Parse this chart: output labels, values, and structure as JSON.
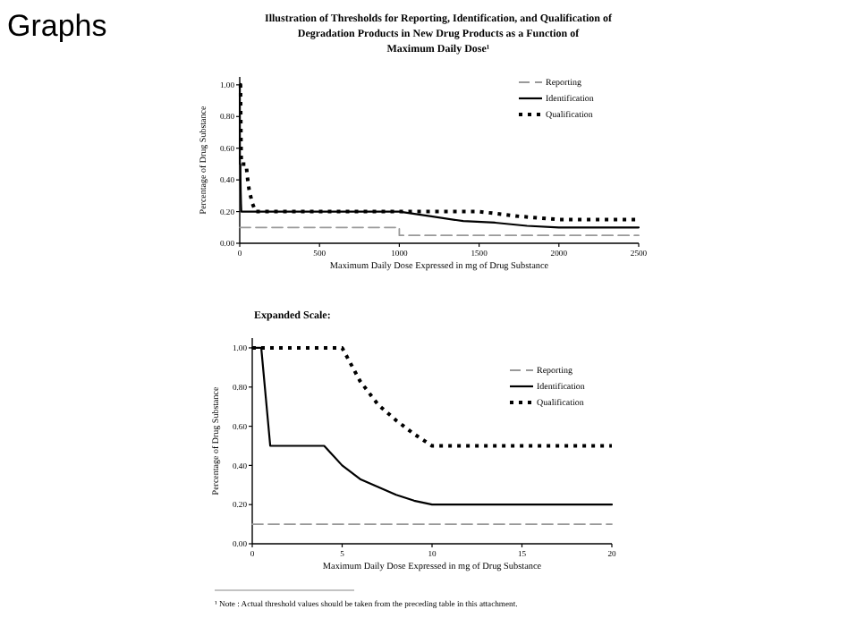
{
  "chart_data": [
    {
      "type": "line",
      "title": "Illustration of Thresholds for Reporting, Identification, and Qualification of\nDegradation Products in New Drug Products as a Function of\nMaximum Daily Dose¹",
      "xlabel": "Maximum Daily Dose Expressed in mg of Drug Substance",
      "ylabel": "Percentage of Drug Substance",
      "annotations": [
        "Graphs"
      ],
      "xlim": [
        0,
        2500
      ],
      "xticks": [
        0,
        500,
        1000,
        1500,
        2000,
        2500
      ],
      "ylim": [
        0,
        1.05
      ],
      "yticks": [
        {
          "value": 0,
          "label": "0.00"
        },
        {
          "value": 0.2,
          "label": "0.20"
        },
        {
          "value": 0.4,
          "label": "0.40"
        },
        {
          "value": 0.6,
          "label": "0.60"
        },
        {
          "value": 0.8,
          "label": "0.80"
        },
        {
          "value": 1,
          "label": "1.00"
        }
      ],
      "grid": false,
      "legend": "top right",
      "marker": "none",
      "series": [
        {
          "name": "Reporting",
          "color": "#999999",
          "line_style": "dashed",
          "x": [
            0,
            1000,
            1000,
            2500
          ],
          "values": [
            0.1,
            0.1,
            0.05,
            0.05
          ]
        },
        {
          "name": "Identification",
          "color": "#000000",
          "line_style": "solid",
          "x": [
            0,
            0.5,
            1,
            4,
            5,
            6,
            8,
            10,
            1000,
            1200,
            1400,
            1600,
            1800,
            2000,
            2500
          ],
          "values": [
            1,
            1,
            0.5,
            0.5,
            0.4,
            0.33,
            0.25,
            0.2,
            0.2,
            0.17,
            0.14,
            0.13,
            0.11,
            0.1,
            0.1
          ]
        },
        {
          "name": "Qualification",
          "color": "#000000",
          "line_style": "dotted",
          "x": [
            0,
            5,
            6,
            8,
            10,
            40,
            50,
            60,
            80,
            100,
            1500,
            1750,
            2000,
            2500
          ],
          "values": [
            1,
            1,
            0.83,
            0.63,
            0.5,
            0.5,
            0.4,
            0.33,
            0.25,
            0.2,
            0.2,
            0.17,
            0.15,
            0.15
          ]
        }
      ]
    },
    {
      "type": "line",
      "title": "Expanded Scale:",
      "xlabel": "Maximum Daily Dose Expressed in mg of Drug Substance",
      "ylabel": "Percentage of Drug Substance",
      "annotations": [
        "¹ Note : Actual threshold values should be taken from the preceding table in this attachment."
      ],
      "xlim": [
        0,
        20
      ],
      "xticks": [
        0,
        5,
        10,
        15,
        20
      ],
      "ylim": [
        0,
        1.05
      ],
      "yticks": [
        {
          "value": 0,
          "label": "0.00"
        },
        {
          "value": 0.2,
          "label": "0.20"
        },
        {
          "value": 0.4,
          "label": "0.40"
        },
        {
          "value": 0.6,
          "label": "0.60"
        },
        {
          "value": 0.8,
          "label": "0.80"
        },
        {
          "value": 1,
          "label": "1.00"
        }
      ],
      "grid": false,
      "legend": "top right",
      "marker": "none",
      "series": [
        {
          "name": "Reporting",
          "color": "#999999",
          "line_style": "dashed",
          "x": [
            0,
            20
          ],
          "values": [
            0.1,
            0.1
          ]
        },
        {
          "name": "Identification",
          "color": "#000000",
          "line_style": "solid",
          "x": [
            0,
            0.5,
            1,
            4,
            5,
            6,
            7,
            8,
            9,
            10,
            20
          ],
          "values": [
            1,
            1,
            0.5,
            0.5,
            0.4,
            0.33,
            0.29,
            0.25,
            0.22,
            0.2,
            0.2
          ]
        },
        {
          "name": "Qualification",
          "color": "#000000",
          "line_style": "dotted",
          "x": [
            0,
            5,
            6,
            7,
            8,
            9,
            10,
            20
          ],
          "values": [
            1,
            1,
            0.83,
            0.71,
            0.63,
            0.56,
            0.5,
            0.5
          ]
        }
      ]
    }
  ]
}
